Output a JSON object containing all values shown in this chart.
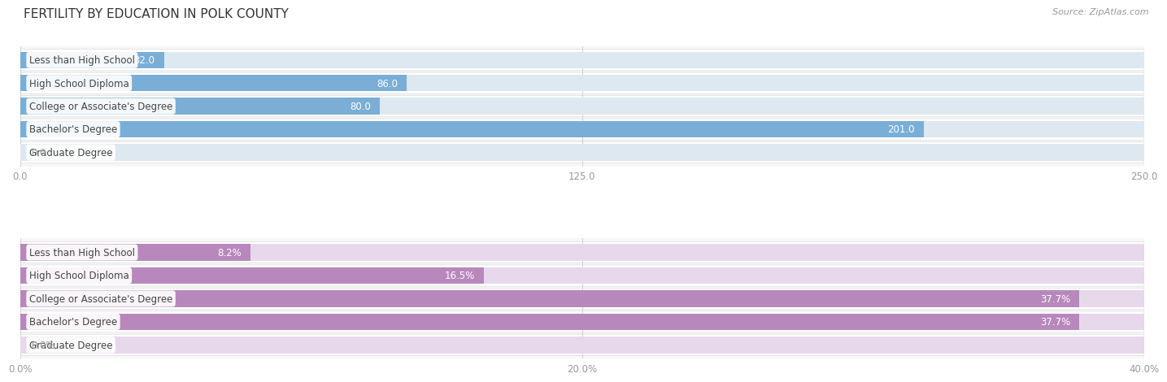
{
  "title": "FERTILITY BY EDUCATION IN POLK COUNTY",
  "source": "Source: ZipAtlas.com",
  "top_chart": {
    "categories": [
      "Less than High School",
      "High School Diploma",
      "College or Associate's Degree",
      "Bachelor's Degree",
      "Graduate Degree"
    ],
    "values": [
      32.0,
      86.0,
      80.0,
      201.0,
      0.0
    ],
    "labels": [
      "32.0",
      "86.0",
      "80.0",
      "201.0",
      "0.0"
    ],
    "xlim": [
      0,
      250
    ],
    "xticks": [
      0.0,
      125.0,
      250.0
    ],
    "xtick_labels": [
      "0.0",
      "125.0",
      "250.0"
    ],
    "bar_color": "#7aaed6",
    "bar_bg_color": "#dde8f0",
    "bar_height": 0.72,
    "bg_color": "#f7f7f7"
  },
  "bottom_chart": {
    "categories": [
      "Less than High School",
      "High School Diploma",
      "College or Associate's Degree",
      "Bachelor's Degree",
      "Graduate Degree"
    ],
    "values": [
      8.2,
      16.5,
      37.7,
      37.7,
      0.0
    ],
    "labels": [
      "8.2%",
      "16.5%",
      "37.7%",
      "37.7%",
      "0.0%"
    ],
    "xlim": [
      0,
      40
    ],
    "xticks": [
      0.0,
      20.0,
      40.0
    ],
    "xtick_labels": [
      "0.0%",
      "20.0%",
      "40.0%"
    ],
    "bar_color": "#b888bc",
    "bar_bg_color": "#e8d8ec",
    "bar_height": 0.72,
    "bg_color": "#f7f7f7"
  },
  "row_bg_color": "#efefef",
  "background_color": "#ffffff",
  "grid_color": "#cccccc",
  "tick_label_color": "#999999",
  "category_label_color": "#444444",
  "category_label_fontsize": 8.5,
  "value_label_fontsize": 8.5,
  "title_fontsize": 11,
  "source_fontsize": 8
}
